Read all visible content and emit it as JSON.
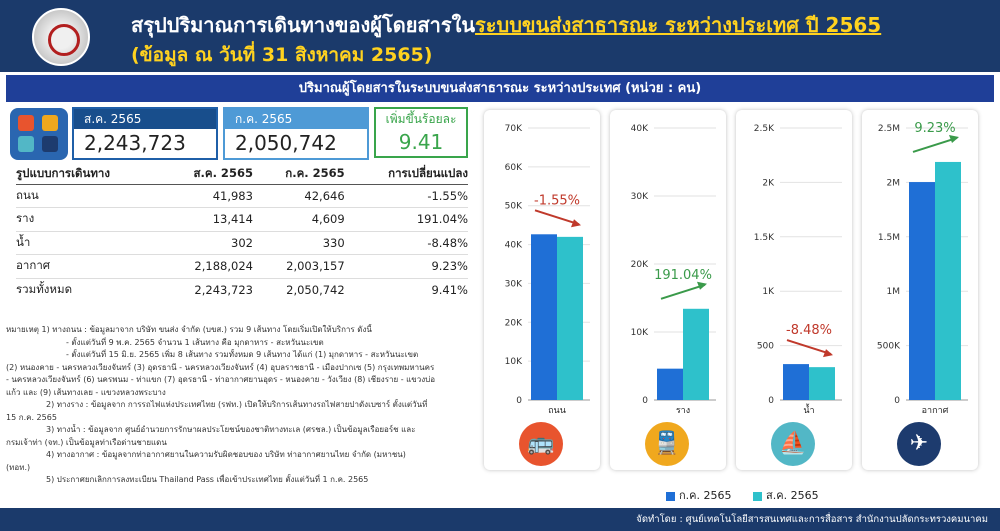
{
  "header": {
    "title_prefix": "สรุปปริมาณการเดินทางของผู้โดยสารใน",
    "title_highlight": "ระบบขนส่งสาธารณะ ระหว่างประเทศ ปี 2565",
    "subtitle": "(ข้อมูล ณ วันที่ 31 สิงหาคม 2565)"
  },
  "section_title": "ปริมาณผู้โดยสารในระบบขนส่งสาธารณะ ระหว่างประเทศ (หน่วย : คน)",
  "kpis": {
    "current_label": "ส.ค. 2565",
    "current_value": "2,243,723",
    "previous_label": "ก.ค. 2565",
    "previous_value": "2,050,742",
    "change_label": "เพิ่มขึ้นร้อยละ",
    "change_value": "9.41"
  },
  "table": {
    "headers": [
      "รูปแบบการเดินทาง",
      "ส.ค. 2565",
      "ก.ค. 2565",
      "การเปลี่ยนแปลง"
    ],
    "rows": [
      [
        "ถนน",
        "41,983",
        "42,646",
        "-1.55%"
      ],
      [
        "ราง",
        "13,414",
        "4,609",
        "191.04%"
      ],
      [
        "น้ำ",
        "302",
        "330",
        "-8.48%"
      ],
      [
        "อากาศ",
        "2,188,024",
        "2,003,157",
        "9.23%"
      ],
      [
        "รวมทั้งหมด",
        "2,243,723",
        "2,050,742",
        "9.41%"
      ]
    ]
  },
  "notes": [
    "หมายเหตุ 1) ทางถนน : ข้อมูลมาจาก บริษัท ขนส่ง จำกัด (บขส.) รวม 9 เส้นทาง โดยเริ่มเปิดให้บริการ ดังนี้",
    "- ตั้งแต่วันที่ 9 พ.ค. 2565 จำนวน 1 เส้นทาง คือ มุกดาหาร - สะหวันนะเขต",
    "- ตั้งแต่วันที่ 15 มิ.ย. 2565 เพิ่ม 8 เส้นทาง รวมทั้งหมด 9 เส้นทาง ได้แก่ (1) มุกดาหาร - สะหวันนะเขต",
    "(2) หนองคาย - นครหลวงเวียงจันทร์ (3) อุดรธานี - นครหลวงเวียงจันทร์ (4) อุบลราชธานี - เมืองปากเซ (5) กรุงเทพมหานคร",
    "- นครหลวงเวียงจันทร์ (6) นครพนม - ท่าแขก (7) อุดรธานี - ท่าอากาศยานอุดร - หนองคาย - วังเวียง (8) เชียงราย - แขวงบ่อ",
    "แก้ว และ (9) เส้นทางเลย - แขวงหลวงพระบาง",
    "2) ทางราง : ข้อมูลจาก การรถไฟแห่งประเทศไทย (รฟท.) เปิดให้บริการเส้นทางรถไฟสายปาดังเบซาร์ ตั้งแต่วันที่",
    "15 ก.ค. 2565",
    "3) ทางน้ำ : ข้อมูลจาก ศูนย์อำนวยการรักษาผลประโยชน์ของชาติทางทะเล (ศรชล.) เป็นข้อมูลเรือยอร์ช และ",
    "กรมเจ้าท่า (จท.) เป็นข้อมูลท่าเรือด่านชายแดน",
    "4) ทางอากาศ : ข้อมูลจากท่าอากาศยานในความรับผิดชอบของ บริษัท ท่าอากาศยานไทย จำกัด (มหาชน)",
    "(ทอท.)",
    "5) ประกาศยกเลิกการลงทะเบียน Thailand Pass เพื่อเข้าประเทศไทย ตั้งแต่วันที่ 1 ก.ค. 2565"
  ],
  "legend": {
    "jul": "ก.ค. 2565",
    "aug": "ส.ค. 2565"
  },
  "footer": "จัดทำโดย : ศูนย์เทคโนโลยีสารสนเทศและการสื่อสาร สำนักงานปลัดกระทรวงคมนาคม",
  "colors": {
    "jul": "#1f6fd6",
    "aug": "#2ec1cb",
    "up": "#3a9a4a",
    "down": "#c0392b"
  },
  "chart_data": [
    {
      "type": "bar",
      "category": "ถนน",
      "series": [
        {
          "name": "ก.ค. 2565",
          "values": [
            42646
          ]
        },
        {
          "name": "ส.ค. 2565",
          "values": [
            41983
          ]
        }
      ],
      "change": "-1.55%",
      "direction": "down",
      "ylim": [
        0,
        70000
      ],
      "ticks": [
        0,
        10000,
        20000,
        30000,
        40000,
        50000,
        60000,
        70000
      ],
      "tick_labels": [
        "0",
        "10K",
        "20K",
        "30K",
        "40K",
        "50K",
        "60K",
        "70K"
      ],
      "icon": "bus-icon",
      "icon_color": "#e8542e"
    },
    {
      "type": "bar",
      "category": "ราง",
      "series": [
        {
          "name": "ก.ค. 2565",
          "values": [
            4609
          ]
        },
        {
          "name": "ส.ค. 2565",
          "values": [
            13414
          ]
        }
      ],
      "change": "191.04%",
      "direction": "up",
      "ylim": [
        0,
        40000
      ],
      "ticks": [
        0,
        10000,
        20000,
        30000,
        40000
      ],
      "tick_labels": [
        "0",
        "10K",
        "20K",
        "30K",
        "40K"
      ],
      "icon": "train-icon",
      "icon_color": "#f0a81e"
    },
    {
      "type": "bar",
      "category": "น้ำ",
      "series": [
        {
          "name": "ก.ค. 2565",
          "values": [
            330
          ]
        },
        {
          "name": "ส.ค. 2565",
          "values": [
            302
          ]
        }
      ],
      "change": "-8.48%",
      "direction": "down",
      "ylim": [
        0,
        2500
      ],
      "ticks": [
        0,
        500,
        1000,
        1500,
        2000,
        2500
      ],
      "tick_labels": [
        "0",
        "500",
        "1K",
        "1.5K",
        "2K",
        "2.5K"
      ],
      "icon": "ship-icon",
      "icon_color": "#52b7c6"
    },
    {
      "type": "bar",
      "category": "อากาศ",
      "series": [
        {
          "name": "ก.ค. 2565",
          "values": [
            2003157
          ]
        },
        {
          "name": "ส.ค. 2565",
          "values": [
            2188024
          ]
        }
      ],
      "change": "9.23%",
      "direction": "up",
      "ylim": [
        0,
        2500000
      ],
      "ticks": [
        0,
        500000,
        1000000,
        1500000,
        2000000,
        2500000
      ],
      "tick_labels": [
        "0",
        "500K",
        "1M",
        "1.5M",
        "2M",
        "2.5M"
      ],
      "icon": "plane-icon",
      "icon_color": "#1d3b6e"
    }
  ]
}
